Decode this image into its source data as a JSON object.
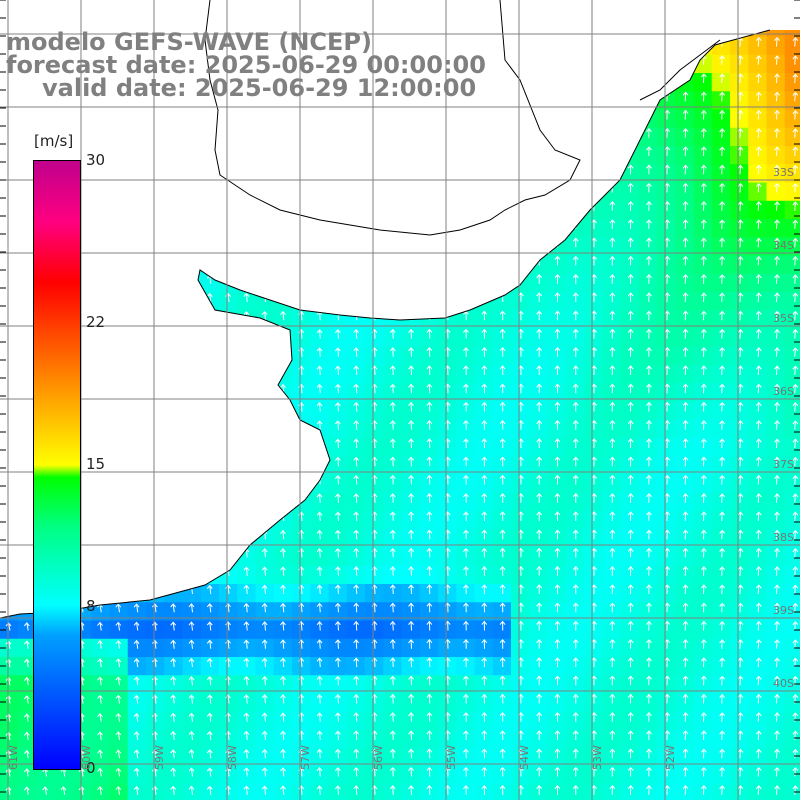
{
  "title": {
    "line1": "modelo GEFS-WAVE (NCEP)",
    "line2": "forecast date: 2025-06-29 00:00:00",
    "line3": "valid date: 2025-06-29 12:00:00"
  },
  "colorbar": {
    "unit": "[m/s]",
    "ticks": [
      "30",
      "22",
      "15",
      "8",
      "0"
    ],
    "tick_values": [
      30,
      22,
      15,
      8,
      0
    ],
    "range": [
      0,
      30
    ],
    "colors": [
      "#0000ff",
      "#00a0ff",
      "#00ffff",
      "#00ff80",
      "#00ff00",
      "#ffff00",
      "#ff8000",
      "#ff0000",
      "#ff0080",
      "#c0008c"
    ]
  },
  "map": {
    "lat_labels": [
      "33S",
      "34S",
      "35S",
      "36S",
      "37S",
      "38S",
      "39S",
      "40S"
    ],
    "lon_labels": [
      "61W",
      "60W",
      "59W",
      "58W",
      "57W",
      "56W",
      "55W",
      "54W",
      "53W",
      "52W"
    ],
    "land_color": "#ffffff",
    "grid_color": "#808080",
    "arrow_color": "#ffffff"
  }
}
